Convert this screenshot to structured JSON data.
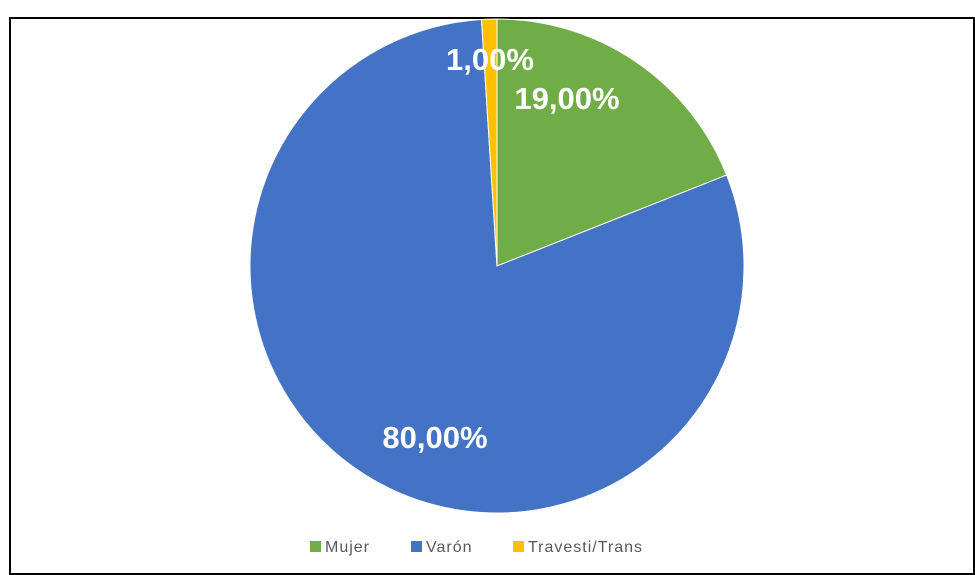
{
  "chart_data": {
    "type": "pie",
    "categories": [
      "Mujer",
      "Varón",
      "Travesti/Trans"
    ],
    "values": [
      19,
      80,
      1
    ],
    "value_labels": [
      "19,00%",
      "80,00%",
      "1,00%"
    ],
    "colors": [
      "#70ad47",
      "#4472c4",
      "#ffc000"
    ],
    "legend": "bottom"
  }
}
